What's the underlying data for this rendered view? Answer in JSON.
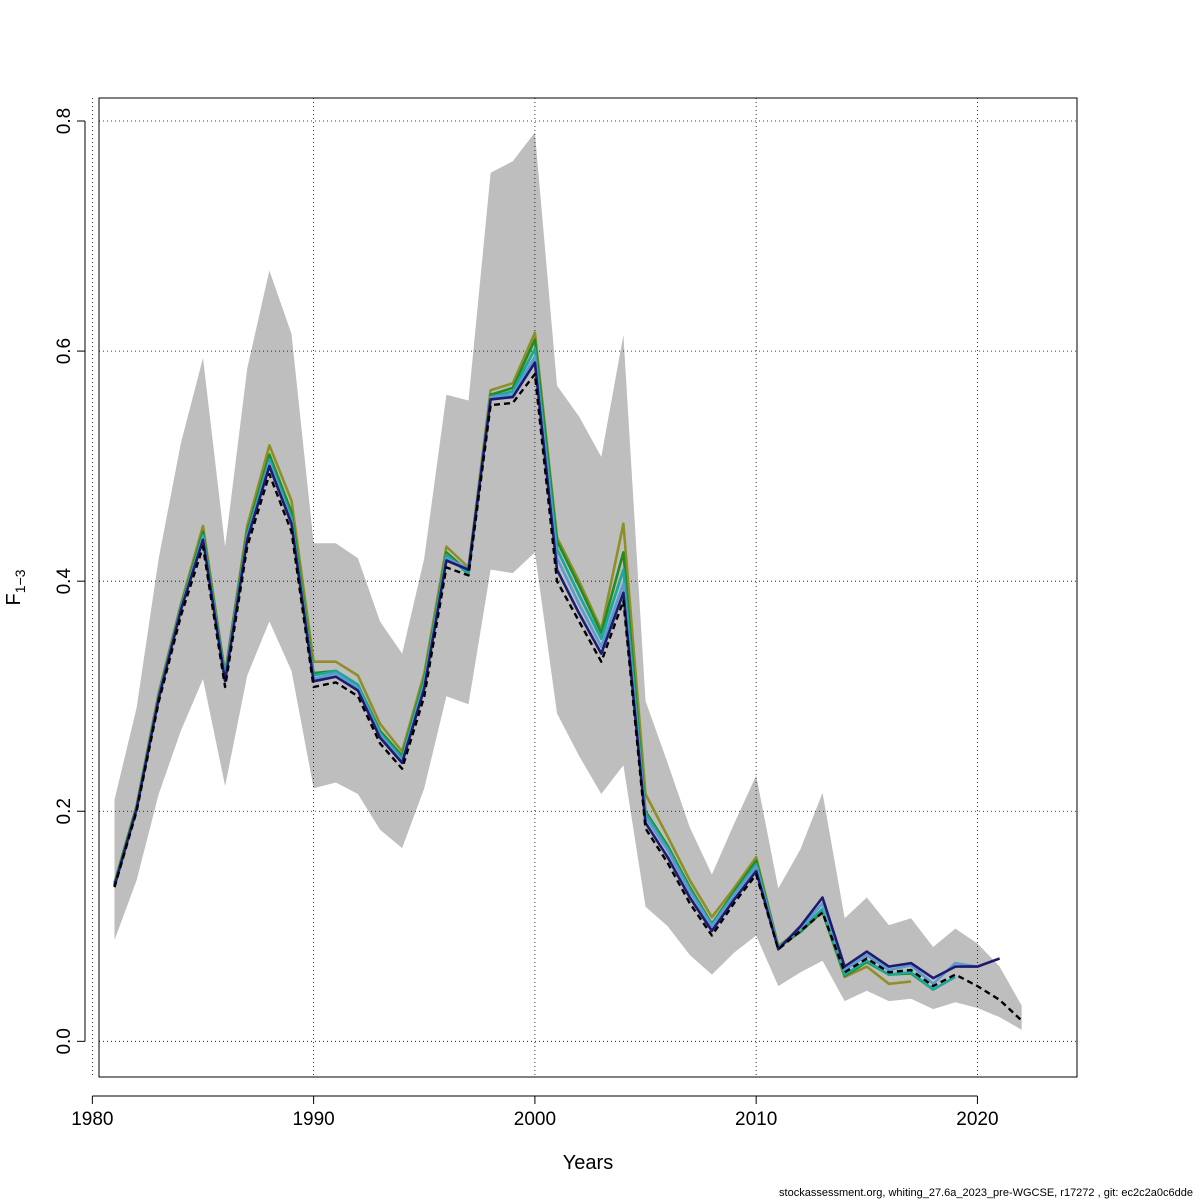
{
  "chart_data": {
    "type": "line",
    "xlabel": "Years",
    "ylabel_main": "F",
    "ylabel_sub": "1−3",
    "footer": "stockassessment.org, whiting_27.6a_2023_pre-WGCSE, r17272 , git: ec2c2a0c6dde",
    "xlim": [
      1980.3,
      2024.5
    ],
    "ylim": [
      -0.031,
      0.82
    ],
    "x_ticks": [
      1980,
      1990,
      2000,
      2010,
      2020
    ],
    "x_tick_labels": [
      "1980",
      "1990",
      "2000",
      "2010",
      "2020"
    ],
    "y_ticks": [
      0.0,
      0.2,
      0.4,
      0.6,
      0.8
    ],
    "y_tick_labels": [
      "0.0",
      "0.2",
      "0.4",
      "0.6",
      "0.8"
    ],
    "grid": true,
    "confidence_band": {
      "color": "#bebebe",
      "x": [
        1981,
        1982,
        1983,
        1984,
        1985,
        1986,
        1987,
        1988,
        1989,
        1990,
        1991,
        1992,
        1993,
        1994,
        1995,
        1996,
        1997,
        1998,
        1999,
        2000,
        2001,
        2002,
        2003,
        2004,
        2005,
        2006,
        2007,
        2008,
        2009,
        2010,
        2011,
        2012,
        2013,
        2014,
        2015,
        2016,
        2017,
        2018,
        2019,
        2020,
        2021,
        2022
      ],
      "lower": [
        0.088,
        0.14,
        0.215,
        0.27,
        0.315,
        0.222,
        0.318,
        0.365,
        0.322,
        0.22,
        0.225,
        0.215,
        0.184,
        0.168,
        0.22,
        0.3,
        0.293,
        0.41,
        0.407,
        0.425,
        0.285,
        0.248,
        0.215,
        0.24,
        0.117,
        0.1,
        0.075,
        0.058,
        0.077,
        0.092,
        0.048,
        0.06,
        0.07,
        0.035,
        0.044,
        0.035,
        0.037,
        0.028,
        0.034,
        0.029,
        0.021,
        0.01
      ],
      "upper": [
        0.21,
        0.29,
        0.42,
        0.52,
        0.594,
        0.43,
        0.585,
        0.67,
        0.615,
        0.433,
        0.433,
        0.42,
        0.365,
        0.337,
        0.42,
        0.562,
        0.557,
        0.755,
        0.765,
        0.79,
        0.57,
        0.543,
        0.508,
        0.614,
        0.296,
        0.242,
        0.186,
        0.145,
        0.189,
        0.231,
        0.133,
        0.167,
        0.216,
        0.107,
        0.125,
        0.101,
        0.107,
        0.082,
        0.098,
        0.085,
        0.065,
        0.031
      ]
    },
    "series": [
      {
        "color": "#000000",
        "dashed": true,
        "x": [
          1981,
          1982,
          1983,
          1984,
          1985,
          1986,
          1987,
          1988,
          1989,
          1990,
          1991,
          1992,
          1993,
          1994,
          1995,
          1996,
          1997,
          1998,
          1999,
          2000,
          2001,
          2002,
          2003,
          2004,
          2005,
          2006,
          2007,
          2008,
          2009,
          2010,
          2011,
          2012,
          2013,
          2014,
          2015,
          2016,
          2017,
          2018,
          2019,
          2020,
          2021,
          2022
        ],
        "values": [
          0.134,
          0.2,
          0.295,
          0.37,
          0.43,
          0.308,
          0.43,
          0.493,
          0.443,
          0.308,
          0.312,
          0.3,
          0.259,
          0.237,
          0.3,
          0.412,
          0.405,
          0.553,
          0.555,
          0.58,
          0.4,
          0.365,
          0.33,
          0.383,
          0.185,
          0.155,
          0.12,
          0.092,
          0.12,
          0.145,
          0.08,
          0.096,
          0.112,
          0.06,
          0.072,
          0.06,
          0.062,
          0.048,
          0.058,
          0.048,
          0.036,
          0.018
        ]
      },
      {
        "color": "#1f1a6e",
        "dashed": false,
        "x": [
          1981,
          1982,
          1983,
          1984,
          1985,
          1986,
          1987,
          1988,
          1989,
          1990,
          1991,
          1992,
          1993,
          1994,
          1995,
          1996,
          1997,
          1998,
          1999,
          2000,
          2001,
          2002,
          2003,
          2004,
          2005,
          2006,
          2007,
          2008,
          2009,
          2010,
          2011,
          2012,
          2013,
          2014,
          2015,
          2016,
          2017,
          2018,
          2019,
          2020,
          2021
        ],
        "values": [
          0.135,
          0.202,
          0.298,
          0.375,
          0.436,
          0.313,
          0.436,
          0.5,
          0.45,
          0.313,
          0.317,
          0.305,
          0.264,
          0.242,
          0.307,
          0.418,
          0.41,
          0.558,
          0.56,
          0.59,
          0.41,
          0.372,
          0.337,
          0.39,
          0.19,
          0.16,
          0.125,
          0.096,
          0.123,
          0.148,
          0.08,
          0.1,
          0.125,
          0.065,
          0.078,
          0.065,
          0.068,
          0.055,
          0.065,
          0.065,
          0.072
        ]
      },
      {
        "color": "#5a9bd4",
        "dashed": false,
        "x": [
          1981,
          1982,
          1983,
          1984,
          1985,
          1986,
          1987,
          1988,
          1989,
          1990,
          1991,
          1992,
          1993,
          1994,
          1995,
          1996,
          1997,
          1998,
          1999,
          2000,
          2001,
          2002,
          2003,
          2004,
          2005,
          2006,
          2007,
          2008,
          2009,
          2010,
          2011,
          2012,
          2013,
          2014,
          2015,
          2016,
          2017,
          2018,
          2019,
          2020
        ],
        "values": [
          0.135,
          0.202,
          0.299,
          0.376,
          0.438,
          0.315,
          0.438,
          0.503,
          0.452,
          0.315,
          0.32,
          0.307,
          0.266,
          0.244,
          0.31,
          0.42,
          0.411,
          0.56,
          0.562,
          0.595,
          0.42,
          0.38,
          0.343,
          0.398,
          0.195,
          0.166,
          0.13,
          0.1,
          0.127,
          0.152,
          0.081,
          0.098,
          0.12,
          0.062,
          0.075,
          0.062,
          0.066,
          0.05,
          0.068,
          0.065
        ]
      },
      {
        "color": "#1aa89a",
        "dashed": false,
        "x": [
          1981,
          1982,
          1983,
          1984,
          1985,
          1986,
          1987,
          1988,
          1989,
          1990,
          1991,
          1992,
          1993,
          1994,
          1995,
          1996,
          1997,
          1998,
          1999,
          2000,
          2001,
          2002,
          2003,
          2004,
          2005,
          2006,
          2007,
          2008,
          2009,
          2010,
          2011,
          2012,
          2013,
          2014,
          2015,
          2016,
          2017,
          2018,
          2019
        ],
        "values": [
          0.136,
          0.203,
          0.3,
          0.377,
          0.44,
          0.317,
          0.44,
          0.506,
          0.455,
          0.318,
          0.322,
          0.31,
          0.268,
          0.246,
          0.313,
          0.423,
          0.406,
          0.56,
          0.565,
          0.602,
          0.428,
          0.388,
          0.35,
          0.41,
          0.198,
          0.168,
          0.132,
          0.101,
          0.128,
          0.154,
          0.082,
          0.097,
          0.115,
          0.058,
          0.07,
          0.058,
          0.06,
          0.045,
          0.056
        ]
      },
      {
        "color": "#228b22",
        "dashed": false,
        "x": [
          1981,
          1982,
          1983,
          1984,
          1985,
          1986,
          1987,
          1988,
          1989,
          1990,
          1991,
          1992,
          1993,
          1994,
          1995,
          1996,
          1997,
          1998,
          1999,
          2000,
          2001,
          2002,
          2003,
          2004,
          2005,
          2006,
          2007,
          2008,
          2009,
          2010,
          2011,
          2012,
          2013,
          2014,
          2015,
          2016,
          2017,
          2018
        ],
        "values": [
          0.137,
          0.204,
          0.301,
          0.378,
          0.443,
          0.318,
          0.443,
          0.51,
          0.46,
          0.32,
          0.322,
          0.31,
          0.27,
          0.248,
          0.315,
          0.425,
          0.408,
          0.562,
          0.568,
          0.61,
          0.435,
          0.396,
          0.355,
          0.425,
          0.2,
          0.17,
          0.134,
          0.102,
          0.13,
          0.157,
          0.082,
          0.095,
          0.113,
          0.057,
          0.069,
          0.058,
          0.059,
          0.045
        ]
      },
      {
        "color": "#8f8f28",
        "dashed": false,
        "x": [
          1981,
          1982,
          1983,
          1984,
          1985,
          1986,
          1987,
          1988,
          1989,
          1990,
          1991,
          1992,
          1993,
          1994,
          1995,
          1996,
          1997,
          1998,
          1999,
          2000,
          2001,
          2002,
          2003,
          2004,
          2005,
          2006,
          2007,
          2008,
          2009,
          2010,
          2011,
          2012,
          2013,
          2014,
          2015,
          2016,
          2017
        ],
        "values": [
          0.138,
          0.205,
          0.303,
          0.38,
          0.448,
          0.32,
          0.448,
          0.518,
          0.47,
          0.33,
          0.33,
          0.318,
          0.276,
          0.252,
          0.32,
          0.43,
          0.412,
          0.566,
          0.572,
          0.616,
          0.438,
          0.4,
          0.358,
          0.45,
          0.215,
          0.178,
          0.14,
          0.108,
          0.133,
          0.16,
          0.083,
          0.097,
          0.112,
          0.056,
          0.065,
          0.05,
          0.052
        ]
      }
    ]
  }
}
